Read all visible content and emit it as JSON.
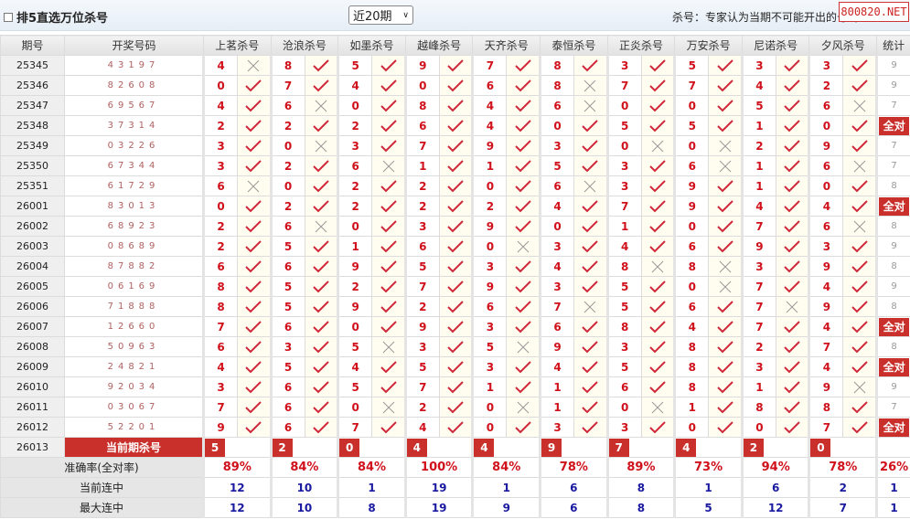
{
  "header": {
    "title": "排5直选万位杀号",
    "period_select": "近20期",
    "note": "杀号：专家认为当期不可能开出的号码",
    "watermark": "800820.NET"
  },
  "columns": {
    "period": "期号",
    "number": "开奖号码",
    "experts": [
      "上茗杀号",
      "沧浪杀号",
      "如墨杀号",
      "越峰杀号",
      "天齐杀号",
      "泰恒杀号",
      "正炎杀号",
      "万安杀号",
      "尼诺杀号",
      "夕风杀号"
    ],
    "stat": "统计"
  },
  "all_correct_label": "全对",
  "colors": {
    "kill": "#d0101b",
    "check": "#d0283a",
    "accent": "#c9302c",
    "streak": "#1a1aa0"
  },
  "rows": [
    {
      "period": "25345",
      "number": "43197",
      "kills": [
        4,
        8,
        5,
        9,
        7,
        8,
        3,
        5,
        3,
        3
      ],
      "stat": "9"
    },
    {
      "period": "25346",
      "number": "82608",
      "kills": [
        0,
        7,
        4,
        0,
        6,
        8,
        7,
        7,
        4,
        2
      ],
      "stat": "9"
    },
    {
      "period": "25347",
      "number": "69567",
      "kills": [
        4,
        6,
        0,
        8,
        4,
        6,
        0,
        0,
        5,
        6
      ],
      "stat": "7"
    },
    {
      "period": "25348",
      "number": "37314",
      "kills": [
        2,
        2,
        2,
        6,
        4,
        0,
        5,
        5,
        1,
        0
      ],
      "stat": "全对"
    },
    {
      "period": "25349",
      "number": "03226",
      "kills": [
        3,
        0,
        3,
        7,
        9,
        3,
        0,
        0,
        2,
        9
      ],
      "stat": "7"
    },
    {
      "period": "25350",
      "number": "67344",
      "kills": [
        3,
        2,
        6,
        1,
        1,
        5,
        3,
        6,
        1,
        6
      ],
      "stat": "7"
    },
    {
      "period": "25351",
      "number": "61729",
      "kills": [
        6,
        0,
        2,
        2,
        0,
        6,
        3,
        9,
        1,
        0
      ],
      "stat": "8"
    },
    {
      "period": "26001",
      "number": "83013",
      "kills": [
        0,
        2,
        2,
        2,
        2,
        4,
        7,
        9,
        4,
        4
      ],
      "stat": "全对"
    },
    {
      "period": "26002",
      "number": "68923",
      "kills": [
        2,
        6,
        0,
        3,
        9,
        0,
        1,
        0,
        7,
        6
      ],
      "stat": "8"
    },
    {
      "period": "26003",
      "number": "08689",
      "kills": [
        2,
        5,
        1,
        6,
        0,
        3,
        4,
        6,
        9,
        3
      ],
      "stat": "9"
    },
    {
      "period": "26004",
      "number": "87882",
      "kills": [
        6,
        6,
        9,
        5,
        3,
        4,
        8,
        8,
        3,
        9
      ],
      "stat": "8"
    },
    {
      "period": "26005",
      "number": "06169",
      "kills": [
        8,
        5,
        2,
        7,
        9,
        3,
        5,
        0,
        7,
        4
      ],
      "stat": "9"
    },
    {
      "period": "26006",
      "number": "71888",
      "kills": [
        8,
        5,
        9,
        2,
        6,
        7,
        5,
        6,
        7,
        9
      ],
      "stat": "8"
    },
    {
      "period": "26007",
      "number": "12660",
      "kills": [
        7,
        6,
        0,
        9,
        3,
        6,
        8,
        4,
        7,
        4
      ],
      "stat": "全对"
    },
    {
      "period": "26008",
      "number": "50963",
      "kills": [
        6,
        3,
        5,
        3,
        5,
        9,
        3,
        8,
        2,
        7
      ],
      "stat": "8"
    },
    {
      "period": "26009",
      "number": "24821",
      "kills": [
        4,
        5,
        4,
        5,
        3,
        4,
        5,
        8,
        3,
        4
      ],
      "stat": "全对"
    },
    {
      "period": "26010",
      "number": "92034",
      "kills": [
        3,
        6,
        5,
        7,
        1,
        1,
        6,
        8,
        1,
        9
      ],
      "stat": "9"
    },
    {
      "period": "26011",
      "number": "03067",
      "kills": [
        7,
        6,
        0,
        2,
        0,
        1,
        0,
        1,
        8,
        8
      ],
      "stat": "7"
    },
    {
      "period": "26012",
      "number": "52201",
      "kills": [
        9,
        6,
        7,
        4,
        0,
        3,
        3,
        0,
        0,
        7
      ],
      "stat": "全对"
    }
  ],
  "current": {
    "period": "26013",
    "label": "当前期杀号",
    "kills": [
      5,
      2,
      0,
      4,
      4,
      9,
      7,
      4,
      2,
      0
    ]
  },
  "summary": [
    {
      "label": "准确率(全对率)",
      "values": [
        "89%",
        "84%",
        "84%",
        "100%",
        "84%",
        "78%",
        "89%",
        "73%",
        "94%",
        "78%"
      ],
      "stat": "26%"
    },
    {
      "label": "当前连中",
      "values": [
        "12",
        "10",
        "1",
        "19",
        "1",
        "6",
        "8",
        "1",
        "6",
        "2"
      ],
      "stat": "1"
    },
    {
      "label": "最大连中",
      "values": [
        "12",
        "10",
        "8",
        "19",
        "9",
        "6",
        "8",
        "5",
        "12",
        "7"
      ],
      "stat": "1"
    }
  ]
}
